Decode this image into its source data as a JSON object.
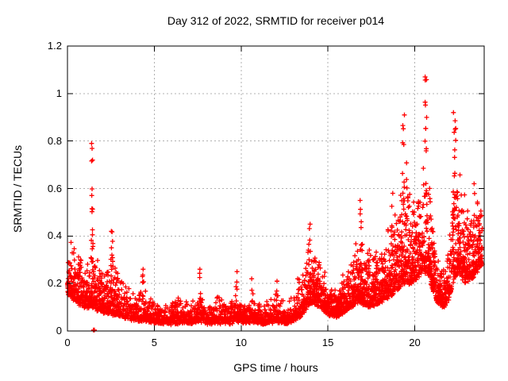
{
  "chart_data": {
    "type": "scatter",
    "title": "Day 312 of 2022, SRMTID for receiver p014",
    "xlabel": "GPS time / hours",
    "ylabel": "SRMTID / TECUs",
    "xlim": [
      0,
      24
    ],
    "ylim": [
      0,
      1.2
    ],
    "xtick_values": [
      0,
      5,
      10,
      15,
      20
    ],
    "xtick_labels": [
      "0",
      "5",
      "10",
      "15",
      "20"
    ],
    "ytick_values": [
      0,
      0.2,
      0.4,
      0.6,
      0.8,
      1,
      1.2
    ],
    "ytick_labels": [
      "0",
      "0.2",
      "0.4",
      "0.6",
      "0.8",
      "1",
      "1.2"
    ],
    "grid": "dotted",
    "grid_x": [
      5,
      10,
      15,
      20
    ],
    "grid_y": [
      0.2,
      0.4,
      0.6,
      0.8,
      1.0
    ],
    "legend": "none",
    "marker": {
      "shape": "plus",
      "size": 7,
      "color": "#ff0000"
    },
    "colors": {
      "marker": "#ff0000",
      "grid": "#b0b0b0",
      "axis": "#000000",
      "background": "#ffffff"
    },
    "notable_points": {
      "max": {
        "t": 20.65,
        "value": 1.07
      },
      "early_spike": {
        "t": 1.45,
        "value": 0.79
      },
      "evening_spike_1": {
        "t": 19.4,
        "value": 0.91
      },
      "evening_spike_2": {
        "t": 22.3,
        "value": 0.92
      },
      "near_zero": {
        "t": 1.5,
        "value": 0.004
      },
      "start_value": {
        "t": 0.02,
        "value": 0.43
      }
    },
    "series": [
      {
        "name": "SRMTID receiver p014",
        "seed": 20221108,
        "base_rate_per_hour": 120,
        "t_end": 23.9,
        "extra_density": [
          [
            0,
            3,
            60
          ],
          [
            13.5,
            23.9,
            70
          ]
        ],
        "band_envelope": [
          [
            0.0,
            0.16,
            0.43
          ],
          [
            0.3,
            0.13,
            0.38
          ],
          [
            0.7,
            0.11,
            0.33
          ],
          [
            1.0,
            0.1,
            0.3
          ],
          [
            1.4,
            0.1,
            0.34
          ],
          [
            1.8,
            0.08,
            0.3
          ],
          [
            2.2,
            0.08,
            0.28
          ],
          [
            2.55,
            0.07,
            0.36
          ],
          [
            3.0,
            0.06,
            0.24
          ],
          [
            3.5,
            0.05,
            0.2
          ],
          [
            4.0,
            0.045,
            0.19
          ],
          [
            4.5,
            0.04,
            0.17
          ],
          [
            5.0,
            0.035,
            0.15
          ],
          [
            5.5,
            0.03,
            0.13
          ],
          [
            6.0,
            0.03,
            0.14
          ],
          [
            6.5,
            0.035,
            0.15
          ],
          [
            7.0,
            0.03,
            0.13
          ],
          [
            7.6,
            0.04,
            0.17
          ],
          [
            8.2,
            0.03,
            0.13
          ],
          [
            8.9,
            0.035,
            0.16
          ],
          [
            9.4,
            0.03,
            0.13
          ],
          [
            9.8,
            0.04,
            0.17
          ],
          [
            10.3,
            0.03,
            0.13
          ],
          [
            10.7,
            0.04,
            0.16
          ],
          [
            11.2,
            0.03,
            0.13
          ],
          [
            11.7,
            0.035,
            0.15
          ],
          [
            12.1,
            0.04,
            0.16
          ],
          [
            12.6,
            0.03,
            0.13
          ],
          [
            13.0,
            0.04,
            0.15
          ],
          [
            13.4,
            0.06,
            0.2
          ],
          [
            13.8,
            0.1,
            0.35
          ],
          [
            14.1,
            0.12,
            0.42
          ],
          [
            14.5,
            0.1,
            0.33
          ],
          [
            15.0,
            0.07,
            0.22
          ],
          [
            15.5,
            0.06,
            0.18
          ],
          [
            16.0,
            0.08,
            0.28
          ],
          [
            16.5,
            0.11,
            0.4
          ],
          [
            16.9,
            0.12,
            0.46
          ],
          [
            17.3,
            0.1,
            0.38
          ],
          [
            17.8,
            0.11,
            0.36
          ],
          [
            18.3,
            0.13,
            0.44
          ],
          [
            18.7,
            0.15,
            0.5
          ],
          [
            19.1,
            0.18,
            0.62
          ],
          [
            19.4,
            0.2,
            0.78
          ],
          [
            19.8,
            0.2,
            0.62
          ],
          [
            20.1,
            0.22,
            0.55
          ],
          [
            20.4,
            0.24,
            0.68
          ],
          [
            20.7,
            0.25,
            0.85
          ],
          [
            21.0,
            0.18,
            0.5
          ],
          [
            21.3,
            0.12,
            0.35
          ],
          [
            21.7,
            0.1,
            0.28
          ],
          [
            22.0,
            0.14,
            0.45
          ],
          [
            22.3,
            0.22,
            0.78
          ],
          [
            22.6,
            0.24,
            0.72
          ],
          [
            22.9,
            0.2,
            0.6
          ],
          [
            23.3,
            0.22,
            0.58
          ],
          [
            23.6,
            0.25,
            0.6
          ],
          [
            23.9,
            0.28,
            0.55
          ]
        ],
        "spike_clusters": [
          {
            "t": 1.42,
            "width": 0.05,
            "base": 0.28,
            "top": 0.79,
            "count": 18
          },
          {
            "t": 2.55,
            "width": 0.06,
            "base": 0.15,
            "top": 0.42,
            "count": 10
          },
          {
            "t": 4.35,
            "width": 0.04,
            "base": 0.12,
            "top": 0.26,
            "count": 6
          },
          {
            "t": 7.65,
            "width": 0.04,
            "base": 0.13,
            "top": 0.26,
            "count": 6
          },
          {
            "t": 9.75,
            "width": 0.04,
            "base": 0.12,
            "top": 0.25,
            "count": 5
          },
          {
            "t": 10.65,
            "width": 0.04,
            "base": 0.12,
            "top": 0.22,
            "count": 4
          },
          {
            "t": 12.05,
            "width": 0.03,
            "base": 0.12,
            "top": 0.21,
            "count": 4
          },
          {
            "t": 13.3,
            "width": 0.05,
            "base": 0.1,
            "top": 0.22,
            "count": 5
          },
          {
            "t": 13.95,
            "width": 0.05,
            "base": 0.22,
            "top": 0.45,
            "count": 8
          },
          {
            "t": 16.9,
            "width": 0.05,
            "base": 0.28,
            "top": 0.55,
            "count": 6
          },
          {
            "t": 18.7,
            "width": 0.04,
            "base": 0.32,
            "top": 0.58,
            "count": 5
          },
          {
            "t": 19.35,
            "width": 0.07,
            "base": 0.45,
            "top": 0.91,
            "count": 10
          },
          {
            "t": 20.65,
            "width": 0.06,
            "base": 0.5,
            "top": 1.07,
            "count": 14
          },
          {
            "t": 22.3,
            "width": 0.08,
            "base": 0.4,
            "top": 0.92,
            "count": 14
          },
          {
            "t": 23.4,
            "width": 0.05,
            "base": 0.35,
            "top": 0.62,
            "count": 6
          }
        ],
        "near_zero_points": [
          [
            1.5,
            0.004
          ],
          [
            1.55,
            0.004
          ]
        ]
      }
    ]
  }
}
